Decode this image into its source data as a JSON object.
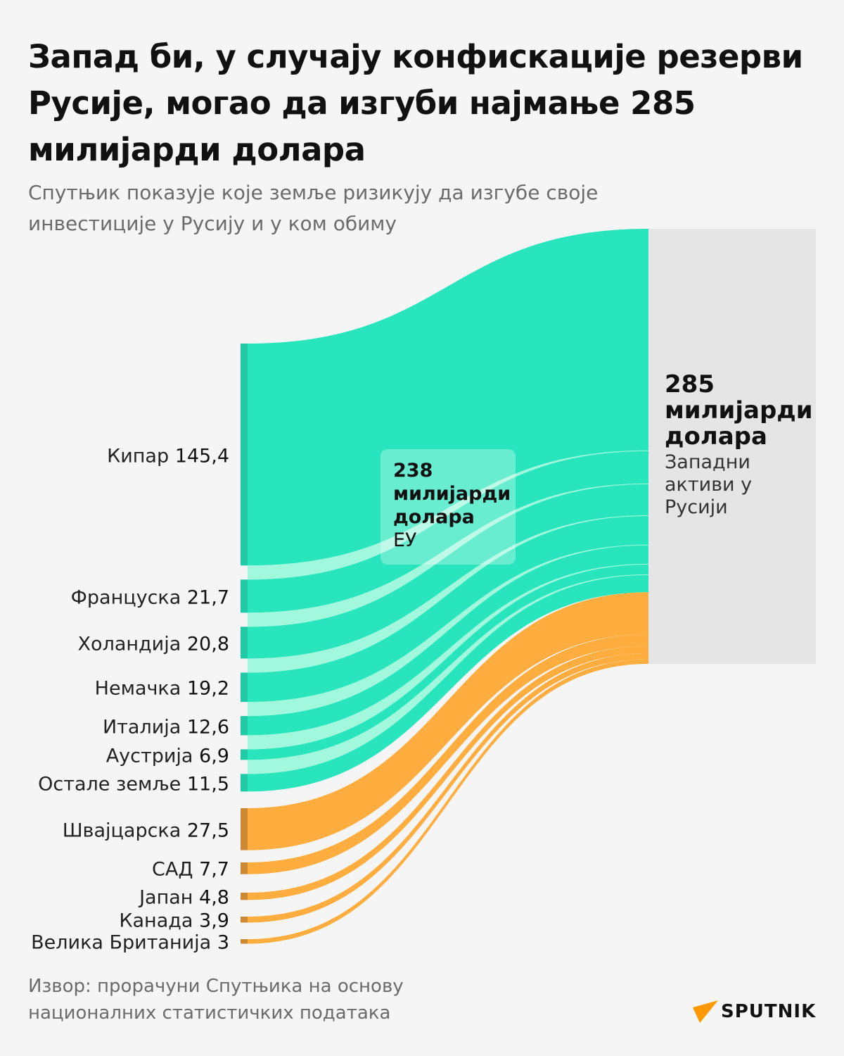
{
  "title": "Запад би, у случају конфискације резерви Русије, могао да изгуби најмање 285 милијарди долара",
  "subtitle": "Спутњик показује које земље ризикују да изгубе своје инвестиције у Русију и у ком обиму",
  "eu_box": {
    "value": "238 милијарди долара",
    "label": "ЕУ"
  },
  "total_box": {
    "value": "285 милијарди долара",
    "label": "Западни активи у Русији"
  },
  "source": "Извор: прорачуни Спутњика на основу националних статистичких података",
  "logo": "SPUTNIK",
  "colors": {
    "eu": "#28e5bd",
    "eu_gap": "#a2f8dd",
    "eu_node": "#22c9a6",
    "other": "#ffad3e",
    "other_node": "#cc8833",
    "total": "#e5e5e5",
    "logo_accent": "#ff9900"
  },
  "chart_data": {
    "type": "sankey",
    "unit": "милијарди долара",
    "target": {
      "name": "Западни активи у Русији",
      "value": 285
    },
    "groups": [
      {
        "name": "ЕУ",
        "value": 238,
        "color": "#28e5bd"
      },
      {
        "name": "",
        "value": 47,
        "color": "#ffad3e"
      }
    ],
    "flows": [
      {
        "name": "Кипар",
        "label": "145,4",
        "value": 145.4,
        "group": 0
      },
      {
        "name": "Француска",
        "label": "21,7",
        "value": 21.7,
        "group": 0
      },
      {
        "name": "Холандија",
        "label": "20,8",
        "value": 20.8,
        "group": 0
      },
      {
        "name": "Немачка",
        "label": "19,2",
        "value": 19.2,
        "group": 0
      },
      {
        "name": "Италија",
        "label": "12,6",
        "value": 12.6,
        "group": 0
      },
      {
        "name": "Аустрија",
        "label": "6,9",
        "value": 6.9,
        "group": 0
      },
      {
        "name": "Остале земље",
        "label": "11,5",
        "value": 11.5,
        "group": 0
      },
      {
        "name": "Швајцарска",
        "label": "27,5",
        "value": 27.5,
        "group": 1
      },
      {
        "name": "САД",
        "label": "7,7",
        "value": 7.7,
        "group": 1
      },
      {
        "name": "Јапан",
        "label": "4,8",
        "value": 4.8,
        "group": 1
      },
      {
        "name": "Канада",
        "label": "3,9",
        "value": 3.9,
        "group": 1
      },
      {
        "name": "Велика Британија",
        "label": "3",
        "value": 3,
        "group": 1
      }
    ]
  }
}
